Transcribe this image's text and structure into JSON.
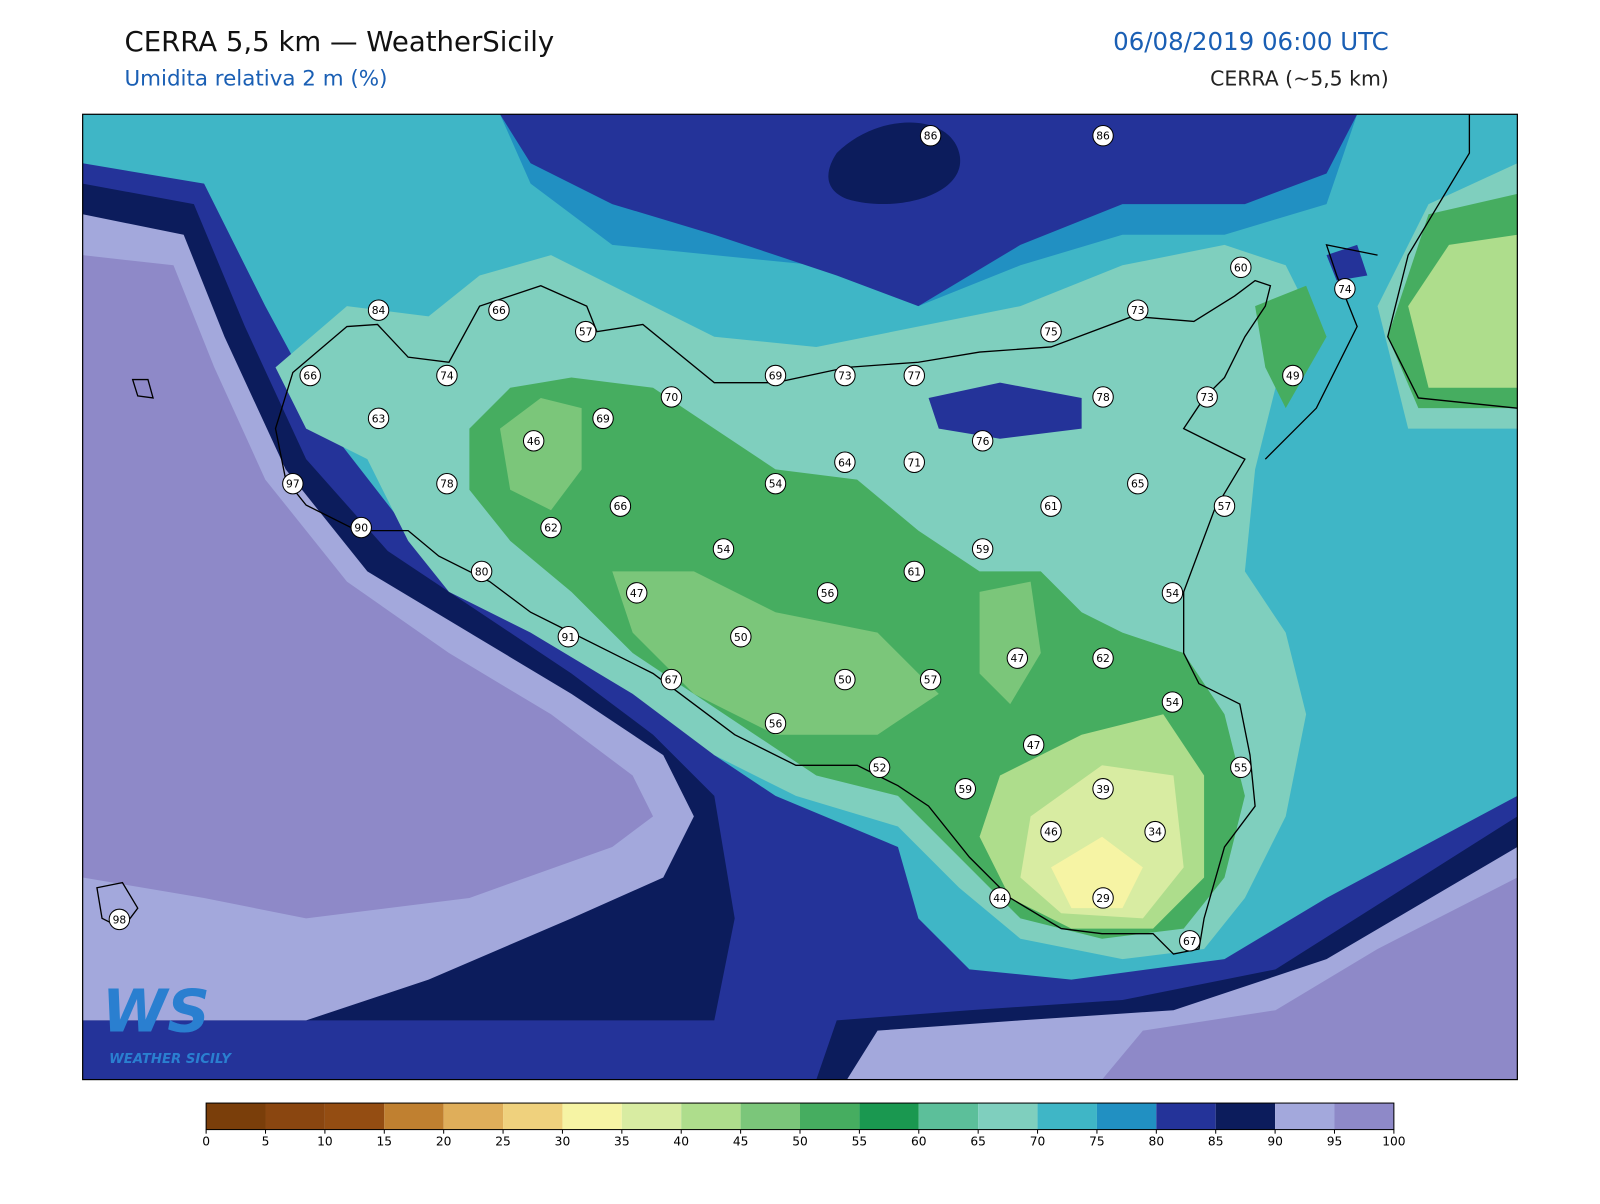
{
  "header": {
    "title": "CERRA 5,5 km — WeatherSicily",
    "subtitle": "Umidita relativa 2 m (%)",
    "datetime": "06/08/2019 06:00 UTC",
    "model": "CERRA (~5,5 km)"
  },
  "map": {
    "stations": [
      86,
      86,
      60,
      74,
      84,
      66,
      57,
      73,
      75,
      49,
      66,
      74,
      69,
      73,
      77,
      70,
      78,
      73,
      63,
      69,
      46,
      76,
      64,
      71,
      54,
      65,
      97,
      78,
      66,
      61,
      57,
      90,
      62,
      54,
      59,
      80,
      61,
      47,
      56,
      54,
      91,
      50,
      47,
      62,
      67,
      50,
      57,
      54,
      56,
      47,
      52,
      55,
      59,
      39,
      46,
      34,
      44,
      29,
      98,
      67
    ]
  },
  "colorbar": {
    "ticks": [
      0,
      5,
      10,
      15,
      20,
      25,
      30,
      35,
      40,
      45,
      50,
      55,
      60,
      65,
      70,
      75,
      80,
      85,
      90,
      95,
      100
    ],
    "colors": [
      "#7a3e0a",
      "#8a4610",
      "#944d12",
      "#c08030",
      "#dfae5a",
      "#efd17d",
      "#f6f4a4",
      "#d8eca2",
      "#aedd8c",
      "#7bc67a",
      "#46ad60",
      "#1a9850",
      "#5cbf9a",
      "#7fcfbe",
      "#3fb6c6",
      "#2190c2",
      "#243399",
      "#0c1c5c",
      "#a3a8dc",
      "#8e89c8"
    ]
  },
  "logo": {
    "mark": "WS",
    "text": "WEATHER SICILY"
  }
}
